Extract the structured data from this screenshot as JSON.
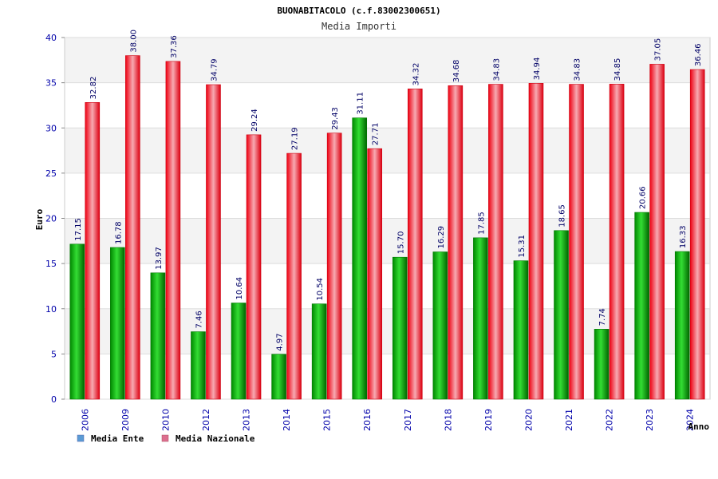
{
  "chart_data": {
    "type": "bar",
    "title": "BUONABITACOLO (c.f.83002300651)",
    "subtitle": "Media Importi",
    "xlabel": "Anno",
    "ylabel": "Euro",
    "categories": [
      "2006",
      "2009",
      "2010",
      "2012",
      "2013",
      "2014",
      "2015",
      "2016",
      "2017",
      "2018",
      "2019",
      "2020",
      "2021",
      "2022",
      "2023",
      "2024"
    ],
    "series": [
      {
        "name": "Media Ente",
        "color": "#00aa00",
        "values": [
          17.15,
          16.78,
          13.97,
          7.46,
          10.64,
          4.97,
          10.54,
          31.11,
          15.7,
          16.29,
          17.85,
          15.31,
          18.65,
          7.74,
          20.66,
          16.33
        ],
        "labels": [
          "17.15",
          "16.78",
          "13.97",
          "7.46",
          "10.64",
          "4.97",
          "10.54",
          "31.11",
          "15.70",
          "16.29",
          "17.85",
          "15.31",
          "18.65",
          "7.74",
          "20.66",
          "16.33"
        ]
      },
      {
        "name": "Media Nazionale",
        "color": "#ee1122",
        "values": [
          32.82,
          38.0,
          37.36,
          34.79,
          29.24,
          27.19,
          29.43,
          27.71,
          34.32,
          34.68,
          34.83,
          34.94,
          34.83,
          34.85,
          37.05,
          36.46
        ],
        "labels": [
          "32.82",
          "38.00",
          "37.36",
          "34.79",
          "29.24",
          "27.19",
          "29.43",
          "27.71",
          "34.32",
          "34.68",
          "34.83",
          "34.94",
          "34.83",
          "34.85",
          "37.05",
          "36.46"
        ]
      }
    ],
    "ylim": [
      0,
      40
    ],
    "yticks": [
      "0",
      "5",
      "10",
      "15",
      "20",
      "25",
      "30",
      "35",
      "40"
    ],
    "grid": true,
    "legend": {
      "placement": "bottom-left",
      "entries": [
        {
          "label": "Media Ente",
          "color": "#5b9bd5"
        },
        {
          "label": "Media Nazionale",
          "color": "#dd6f8f"
        }
      ]
    }
  }
}
